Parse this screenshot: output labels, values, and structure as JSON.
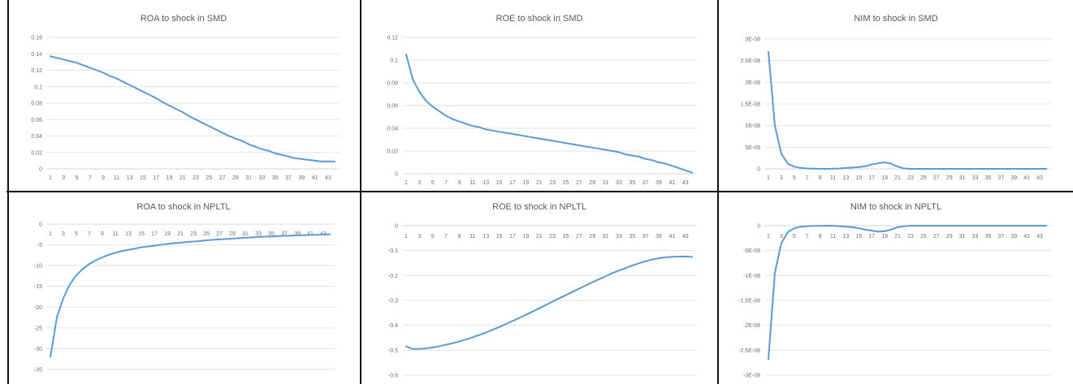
{
  "chart_data": [
    {
      "type": "line",
      "title": "ROA to shock in SMD",
      "x": [
        1,
        2,
        3,
        4,
        5,
        6,
        7,
        8,
        9,
        10,
        11,
        12,
        13,
        14,
        15,
        16,
        17,
        18,
        19,
        20,
        21,
        22,
        23,
        24,
        25,
        26,
        27,
        28,
        29,
        30,
        31,
        32,
        33,
        34,
        35,
        36,
        37,
        38,
        39,
        40,
        41,
        42,
        43,
        44
      ],
      "x_tick_labels": [
        "1",
        "3",
        "5",
        "7",
        "9",
        "11",
        "13",
        "15",
        "17",
        "19",
        "21",
        "23",
        "25",
        "27",
        "29",
        "31",
        "33",
        "35",
        "37",
        "39",
        "41",
        "43"
      ],
      "y_ticks": [
        0,
        0.02,
        0.04,
        0.06,
        0.08,
        0.1,
        0.12,
        0.14,
        0.16
      ],
      "y_tick_labels": [
        "0",
        "0.02",
        "0.04",
        "0.06",
        "0.08",
        "0.1",
        "0.12",
        "0.14",
        "0.16"
      ],
      "ylim": [
        0,
        0.16
      ],
      "grid": true,
      "series": [
        {
          "values": [
            0.137,
            0.135,
            0.133,
            0.131,
            0.129,
            0.126,
            0.123,
            0.12,
            0.117,
            0.113,
            0.11,
            0.106,
            0.102,
            0.098,
            0.094,
            0.09,
            0.086,
            0.081,
            0.077,
            0.073,
            0.069,
            0.064,
            0.06,
            0.056,
            0.052,
            0.048,
            0.044,
            0.04,
            0.037,
            0.034,
            0.03,
            0.027,
            0.024,
            0.022,
            0.019,
            0.017,
            0.015,
            0.013,
            0.012,
            0.011,
            0.01,
            0.009,
            0.009,
            0.009
          ],
          "color": "#5b9bd5"
        }
      ]
    },
    {
      "type": "line",
      "title": "ROE to shock in SMD",
      "x": [
        1,
        2,
        3,
        4,
        5,
        6,
        7,
        8,
        9,
        10,
        11,
        12,
        13,
        14,
        15,
        16,
        17,
        18,
        19,
        20,
        21,
        22,
        23,
        24,
        25,
        26,
        27,
        28,
        29,
        30,
        31,
        32,
        33,
        34,
        35,
        36,
        37,
        38,
        39,
        40,
        41,
        42,
        43,
        44
      ],
      "x_tick_labels": [
        "1",
        "3",
        "5",
        "7",
        "9",
        "11",
        "13",
        "15",
        "17",
        "19",
        "21",
        "23",
        "25",
        "27",
        "29",
        "31",
        "33",
        "35",
        "37",
        "39",
        "41",
        "43"
      ],
      "y_ticks": [
        0,
        0.02,
        0.04,
        0.06,
        0.08,
        0.1,
        0.12
      ],
      "y_tick_labels": [
        "0",
        "0.02",
        "0.04",
        "0.06",
        "0.08",
        "0.1",
        "0.12"
      ],
      "ylim": [
        0,
        0.12
      ],
      "grid": true,
      "series": [
        {
          "values": [
            0.105,
            0.083,
            0.072,
            0.064,
            0.059,
            0.055,
            0.051,
            0.048,
            0.046,
            0.044,
            0.042,
            0.041,
            0.039,
            0.038,
            0.037,
            0.036,
            0.035,
            0.034,
            0.033,
            0.032,
            0.031,
            0.03,
            0.029,
            0.028,
            0.027,
            0.026,
            0.025,
            0.024,
            0.023,
            0.022,
            0.021,
            0.02,
            0.019,
            0.017,
            0.016,
            0.015,
            0.013,
            0.012,
            0.01,
            0.009,
            0.007,
            0.005,
            0.003,
            0.001
          ],
          "color": "#5b9bd5"
        }
      ]
    },
    {
      "type": "line",
      "title": "NIM to shock in SMD",
      "x": [
        1,
        2,
        3,
        4,
        5,
        6,
        7,
        8,
        9,
        10,
        11,
        12,
        13,
        14,
        15,
        16,
        17,
        18,
        19,
        20,
        21,
        22,
        23,
        24,
        25,
        26,
        27,
        28,
        29,
        30,
        31,
        32,
        33,
        34,
        35,
        36,
        37,
        38,
        39,
        40,
        41,
        42,
        43,
        44
      ],
      "x_tick_labels": [
        "1",
        "3",
        "5",
        "7",
        "9",
        "11",
        "13",
        "15",
        "17",
        "19",
        "21",
        "23",
        "25",
        "27",
        "29",
        "31",
        "33",
        "35",
        "37",
        "39",
        "41",
        "43"
      ],
      "y_ticks": [
        0,
        5e-09,
        1e-08,
        1.5e-08,
        2e-08,
        2.5e-08,
        3e-08
      ],
      "y_tick_labels": [
        "0",
        "5E-09",
        "1E-08",
        "1.5E-08",
        "2E-08",
        "2.5E-08",
        "3E-08"
      ],
      "ylim": [
        0,
        3e-08
      ],
      "grid": true,
      "series": [
        {
          "values": [
            2.7e-08,
            1e-08,
            3.5e-09,
            1.2e-09,
            5e-10,
            2e-10,
            1e-10,
            5e-11,
            2e-11,
            1e-11,
            5e-11,
            1e-10,
            2e-10,
            3e-10,
            4e-10,
            6e-10,
            1e-09,
            1.3e-09,
            1.5e-09,
            1.2e-09,
            5e-10,
            1e-10,
            0,
            0,
            0,
            0,
            0,
            0,
            0,
            0,
            0,
            0,
            0,
            0,
            0,
            0,
            0,
            0,
            0,
            0,
            0,
            0,
            0,
            0
          ],
          "color": "#5b9bd5"
        }
      ]
    },
    {
      "type": "line",
      "title": "ROA to shock in NPLTL",
      "x": [
        1,
        2,
        3,
        4,
        5,
        6,
        7,
        8,
        9,
        10,
        11,
        12,
        13,
        14,
        15,
        16,
        17,
        18,
        19,
        20,
        21,
        22,
        23,
        24,
        25,
        26,
        27,
        28,
        29,
        30,
        31,
        32,
        33,
        34,
        35,
        36,
        37,
        38,
        39,
        40,
        41,
        42,
        43,
        44
      ],
      "x_tick_labels": [
        "1",
        "3",
        "5",
        "7",
        "9",
        "11",
        "13",
        "15",
        "17",
        "19",
        "21",
        "23",
        "25",
        "27",
        "29",
        "31",
        "33",
        "35",
        "37",
        "39",
        "41",
        "43"
      ],
      "y_ticks": [
        0,
        -5,
        -10,
        -15,
        -20,
        -25,
        -30,
        -35
      ],
      "y_tick_labels": [
        "0",
        "-5",
        "-10",
        "-15",
        "-20",
        "-25",
        "-30",
        "-35"
      ],
      "ylim": [
        -35,
        0
      ],
      "grid": true,
      "series": [
        {
          "values": [
            -32,
            -22.5,
            -17.8,
            -14.5,
            -12.3,
            -10.8,
            -9.6,
            -8.7,
            -8,
            -7.4,
            -6.9,
            -6.5,
            -6.2,
            -5.9,
            -5.6,
            -5.4,
            -5.2,
            -5,
            -4.8,
            -4.6,
            -4.5,
            -4.3,
            -4.2,
            -4.1,
            -3.9,
            -3.8,
            -3.7,
            -3.6,
            -3.5,
            -3.4,
            -3.3,
            -3.2,
            -3.1,
            -3,
            -3,
            -2.9,
            -2.8,
            -2.8,
            -2.7,
            -2.7,
            -2.6,
            -2.6,
            -2.5,
            -2.5
          ],
          "color": "#5b9bd5"
        }
      ]
    },
    {
      "type": "line",
      "title": "ROE to shock in NPLTL",
      "x": [
        1,
        2,
        3,
        4,
        5,
        6,
        7,
        8,
        9,
        10,
        11,
        12,
        13,
        14,
        15,
        16,
        17,
        18,
        19,
        20,
        21,
        22,
        23,
        24,
        25,
        26,
        27,
        28,
        29,
        30,
        31,
        32,
        33,
        34,
        35,
        36,
        37,
        38,
        39,
        40,
        41,
        42,
        43,
        44
      ],
      "x_tick_labels": [
        "1",
        "3",
        "5",
        "7",
        "9",
        "11",
        "13",
        "15",
        "17",
        "19",
        "21",
        "23",
        "25",
        "27",
        "29",
        "31",
        "33",
        "35",
        "37",
        "39",
        "41",
        "43"
      ],
      "y_ticks": [
        0,
        -0.1,
        -0.2,
        -0.3,
        -0.4,
        -0.5,
        -0.6
      ],
      "y_tick_labels": [
        "0",
        "-0.1",
        "-0.2",
        "-0.3",
        "-0.4",
        "-0.5",
        "-0.6"
      ],
      "ylim": [
        -0.6,
        0
      ],
      "grid": true,
      "series": [
        {
          "values": [
            -0.485,
            -0.495,
            -0.495,
            -0.493,
            -0.489,
            -0.484,
            -0.478,
            -0.472,
            -0.465,
            -0.457,
            -0.448,
            -0.439,
            -0.429,
            -0.418,
            -0.407,
            -0.395,
            -0.383,
            -0.371,
            -0.358,
            -0.345,
            -0.332,
            -0.319,
            -0.305,
            -0.292,
            -0.279,
            -0.266,
            -0.253,
            -0.24,
            -0.227,
            -0.215,
            -0.203,
            -0.191,
            -0.18,
            -0.17,
            -0.16,
            -0.151,
            -0.143,
            -0.136,
            -0.131,
            -0.127,
            -0.125,
            -0.124,
            -0.124,
            -0.125
          ],
          "color": "#5b9bd5"
        }
      ]
    },
    {
      "type": "line",
      "title": "NIM to shock in NPLTL",
      "x": [
        1,
        2,
        3,
        4,
        5,
        6,
        7,
        8,
        9,
        10,
        11,
        12,
        13,
        14,
        15,
        16,
        17,
        18,
        19,
        20,
        21,
        22,
        23,
        24,
        25,
        26,
        27,
        28,
        29,
        30,
        31,
        32,
        33,
        34,
        35,
        36,
        37,
        38,
        39,
        40,
        41,
        42,
        43,
        44
      ],
      "x_tick_labels": [
        "1",
        "3",
        "5",
        "7",
        "9",
        "11",
        "13",
        "15",
        "17",
        "19",
        "21",
        "23",
        "25",
        "27",
        "29",
        "31",
        "33",
        "35",
        "37",
        "39",
        "41",
        "43"
      ],
      "y_ticks": [
        0,
        -5e-09,
        -1e-08,
        -1.5e-08,
        -2e-08,
        -2.5e-08,
        -3e-08
      ],
      "y_tick_labels": [
        "0",
        "-5E-09",
        "-1E-08",
        "-1.5E-08",
        "-2E-08",
        "-2.5E-08",
        "-3E-08"
      ],
      "ylim": [
        -3e-08,
        0
      ],
      "grid": true,
      "series": [
        {
          "values": [
            -2.68e-08,
            -9.5e-09,
            -3.5e-09,
            -1.3e-09,
            -5e-10,
            -2e-10,
            -1e-10,
            -5e-11,
            -2e-11,
            -1e-11,
            -3e-11,
            -1e-10,
            -2e-10,
            -3e-10,
            -5e-10,
            -8e-10,
            -1e-09,
            -1.2e-09,
            -1.1e-09,
            -8e-10,
            -3e-10,
            -1e-10,
            0,
            0,
            0,
            0,
            0,
            0,
            0,
            0,
            0,
            0,
            0,
            0,
            0,
            0,
            0,
            0,
            0,
            0,
            0,
            0,
            0,
            0
          ],
          "color": "#5b9bd5"
        }
      ]
    }
  ]
}
